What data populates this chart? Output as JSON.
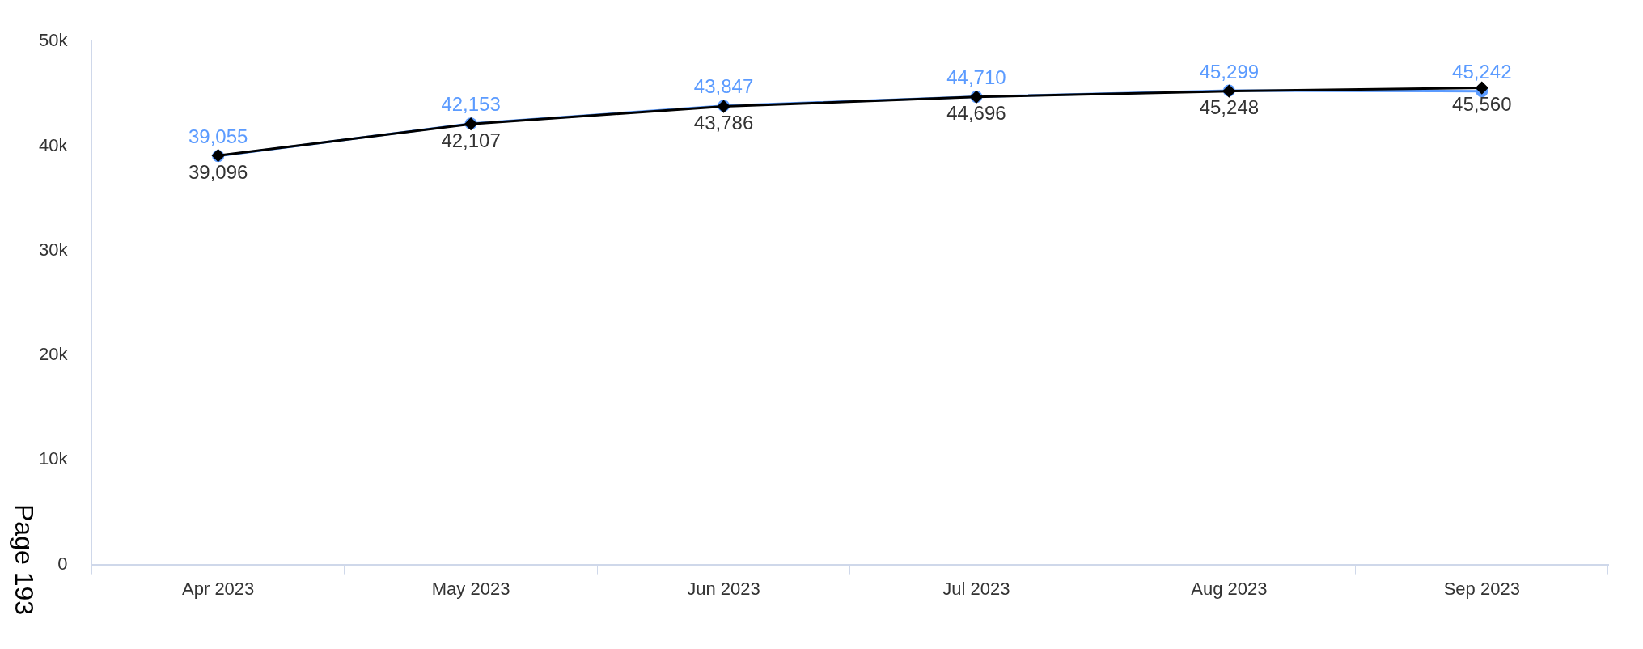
{
  "chart_data": {
    "type": "line",
    "categories": [
      "Apr 2023",
      "May 2023",
      "Jun 2023",
      "Jul 2023",
      "Aug 2023",
      "Sep 2023"
    ],
    "series": [
      {
        "color": "#5b9bff",
        "marker": "circle",
        "values": [
          39055,
          42153,
          43847,
          44710,
          45299,
          45242
        ],
        "value_labels": [
          "39,055",
          "42,153",
          "43,847",
          "44,710",
          "45,299",
          "45,242"
        ]
      },
      {
        "color": "#000000",
        "marker": "diamond",
        "values": [
          39096,
          42107,
          43786,
          44696,
          45248,
          45560
        ],
        "value_labels": [
          "39,096",
          "42,107",
          "43,786",
          "44,696",
          "45,248",
          "45,560"
        ]
      }
    ],
    "ylim": [
      0,
      50000
    ],
    "yticks": [
      {
        "value": 0,
        "label": "0"
      },
      {
        "value": 10000,
        "label": "10k"
      },
      {
        "value": 20000,
        "label": "20k"
      },
      {
        "value": 30000,
        "label": "30k"
      },
      {
        "value": 40000,
        "label": "40k"
      },
      {
        "value": 50000,
        "label": "50k"
      }
    ],
    "grid": false,
    "legend": false,
    "annotations": [
      "Page 193"
    ]
  }
}
